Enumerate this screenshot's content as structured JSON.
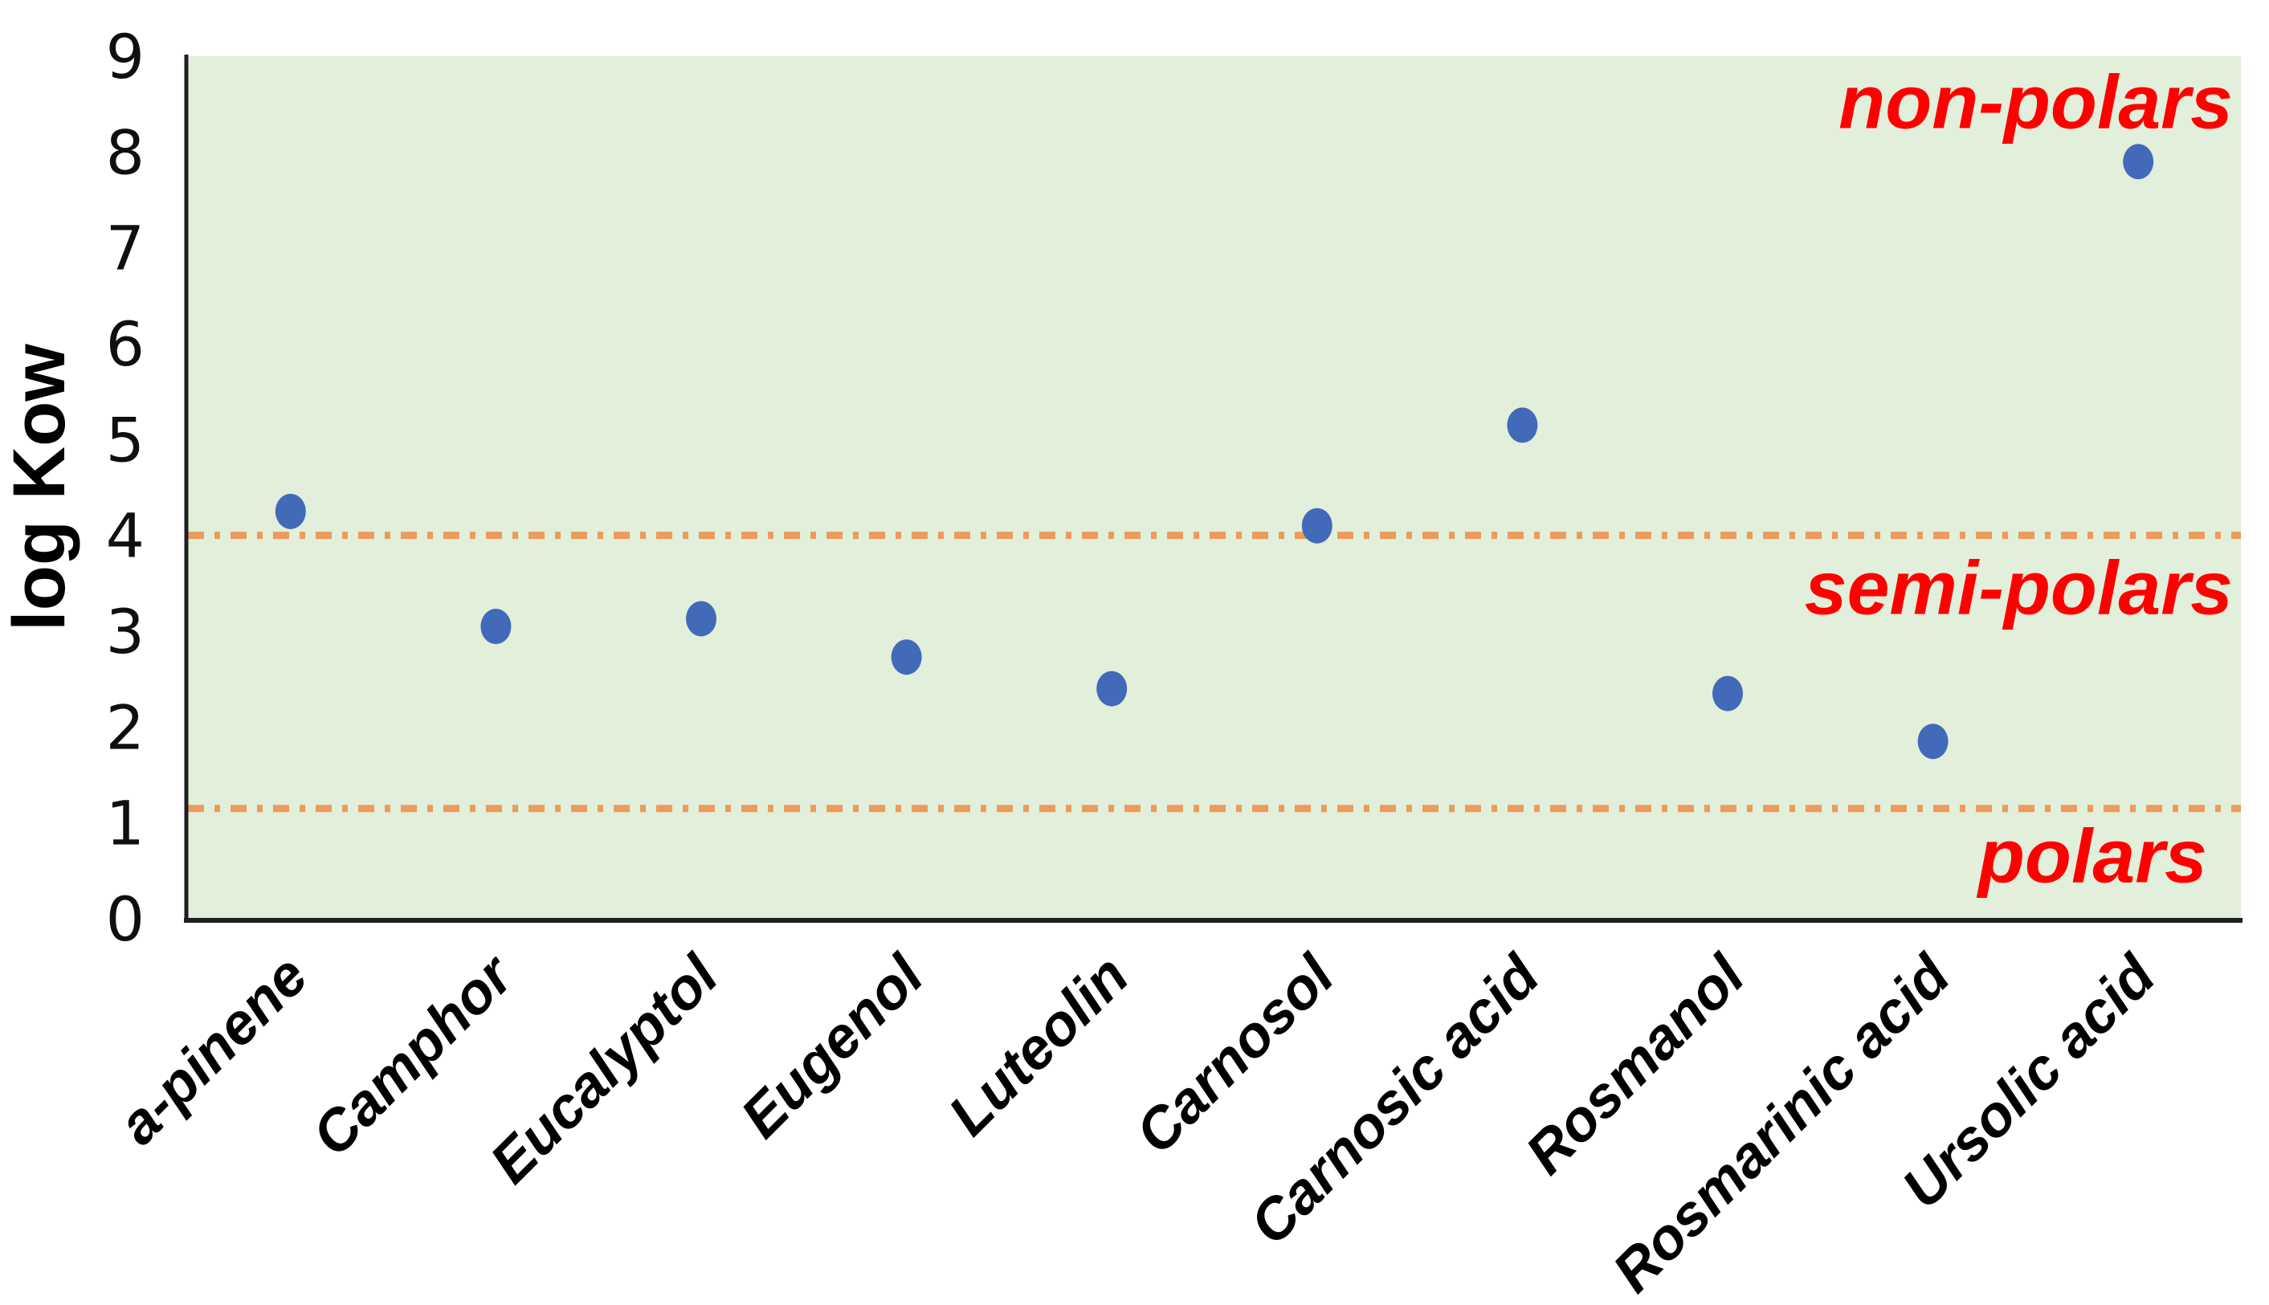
{
  "chart_data": {
    "type": "scatter",
    "title": "",
    "xlabel": "",
    "ylabel": "log Kow",
    "ylim": [
      0,
      9
    ],
    "yticks": [
      0,
      1,
      2,
      3,
      4,
      5,
      6,
      7,
      8,
      9
    ],
    "grid": false,
    "legend": "none",
    "categories": [
      "a-pinene",
      "Camphor",
      "Eucalyptol",
      "Eugenol",
      "Luteolin",
      "Carnosol",
      "Carnosic acid",
      "Rosmanol",
      "Rosmarinic acid",
      "Ursolic acid"
    ],
    "values": [
      4.25,
      3.05,
      3.13,
      2.73,
      2.4,
      4.1,
      5.15,
      2.35,
      1.85,
      7.9
    ],
    "threshold_lines": [
      {
        "value": 4.0,
        "style": "dash-dot"
      },
      {
        "value": 1.15,
        "style": "dash-dot"
      }
    ],
    "region_labels": [
      {
        "text": "non-polars",
        "y_value": 8.25
      },
      {
        "text": "semi-polars",
        "y_value": 3.18
      },
      {
        "text": "polars",
        "y_value": 0.38
      }
    ],
    "colors": {
      "plot_background": "#E2EFDA",
      "marker": "#426AB8",
      "threshold_line": "#EC9B5C",
      "axis": "#1F1F1F",
      "region_label": "#FF0000",
      "tick_text": "#0F0F0F"
    }
  }
}
